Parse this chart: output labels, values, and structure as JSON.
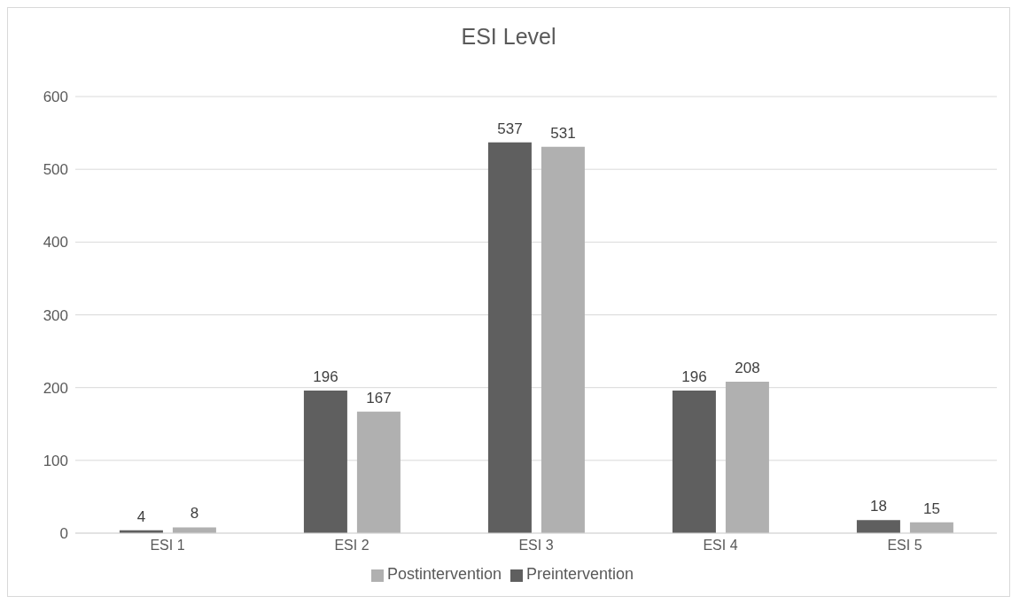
{
  "chart_data": {
    "type": "bar",
    "title": "ESI Level",
    "categories": [
      "ESI 1",
      "ESI 2",
      "ESI 3",
      "ESI 4",
      "ESI 5"
    ],
    "series": [
      {
        "name": "Preintervention",
        "color": "#5f5f5f",
        "values": [
          4,
          196,
          537,
          196,
          18
        ]
      },
      {
        "name": "Postintervention",
        "color": "#b0b0b0",
        "values": [
          8,
          167,
          531,
          208,
          15
        ]
      }
    ],
    "ylim": [
      0,
      600
    ],
    "yticks": [
      0,
      100,
      200,
      300,
      400,
      500,
      600
    ],
    "grid": "y",
    "legend": "bottom",
    "data_labels": true
  }
}
